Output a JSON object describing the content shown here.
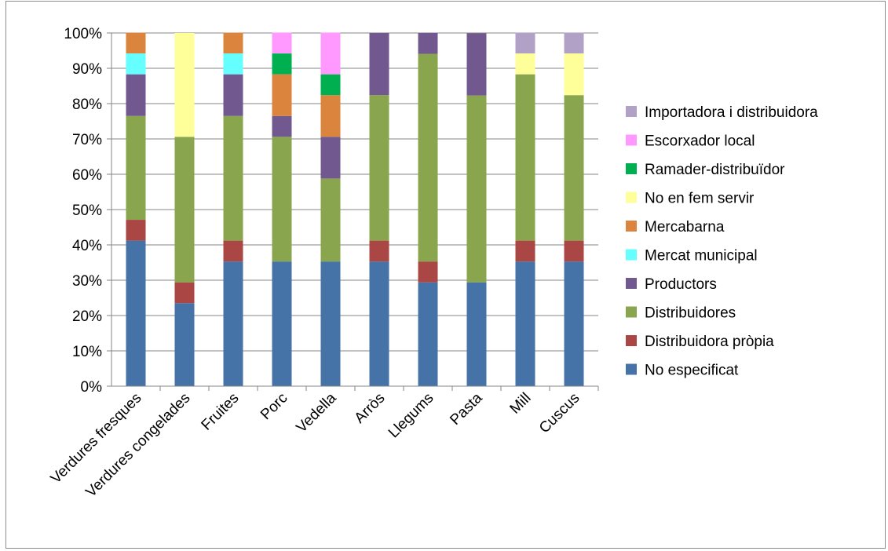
{
  "chart_data": {
    "type": "bar",
    "stacked": true,
    "percent": true,
    "title": "",
    "xlabel": "",
    "ylabel": "",
    "ylim": [
      0,
      100
    ],
    "yticks": [
      "0%",
      "10%",
      "20%",
      "30%",
      "40%",
      "50%",
      "60%",
      "70%",
      "80%",
      "90%",
      "100%"
    ],
    "grid": true,
    "legend_position": "right",
    "categories": [
      "Verdures fresques",
      "Verdures congelades",
      "Fruites",
      "Porc",
      "Vedella",
      "Arròs",
      "Llegums",
      "Pasta",
      "Mill",
      "Cuscus"
    ],
    "series": [
      {
        "name": "No especificat",
        "color": "#4572A7",
        "values": [
          41.2,
          23.5,
          35.3,
          35.3,
          35.3,
          35.3,
          29.4,
          29.4,
          35.3,
          35.3
        ]
      },
      {
        "name": "Distribuidora pròpia",
        "color": "#AA4643",
        "values": [
          5.9,
          5.9,
          5.9,
          0,
          0,
          5.9,
          5.9,
          0,
          5.9,
          5.9
        ]
      },
      {
        "name": "Distribuidores",
        "color": "#89A54E",
        "values": [
          29.4,
          41.2,
          35.3,
          35.3,
          23.5,
          41.2,
          58.8,
          52.9,
          47.1,
          41.2
        ]
      },
      {
        "name": "Productors",
        "color": "#71588F",
        "values": [
          11.8,
          0,
          11.8,
          5.9,
          11.8,
          17.6,
          5.9,
          17.6,
          0,
          0
        ]
      },
      {
        "name": "Mercat municipal",
        "color": "#66FFFF",
        "values": [
          5.9,
          0,
          5.9,
          0,
          0,
          0,
          0,
          0,
          0,
          0
        ]
      },
      {
        "name": "Mercabarna",
        "color": "#DB843D",
        "values": [
          5.9,
          0,
          5.9,
          11.8,
          11.8,
          0,
          0,
          0,
          0,
          0
        ]
      },
      {
        "name": "No en fem servir",
        "color": "#FFFF99",
        "values": [
          0,
          29.4,
          0,
          0,
          0,
          0,
          0,
          0,
          5.9,
          11.8
        ]
      },
      {
        "name": "Ramader-distribuïdor",
        "color": "#00B050",
        "values": [
          0,
          0,
          0,
          5.9,
          5.9,
          0,
          0,
          0,
          0,
          0
        ]
      },
      {
        "name": "Escorxador local",
        "color": "#FF99FF",
        "values": [
          0,
          0,
          0,
          5.9,
          11.8,
          0,
          0,
          0,
          0,
          0
        ]
      },
      {
        "name": "Importadora i distribuidora",
        "color": "#B2A1C7",
        "values": [
          0,
          0,
          0,
          0,
          0,
          0,
          0,
          0,
          5.9,
          5.9
        ]
      }
    ]
  }
}
